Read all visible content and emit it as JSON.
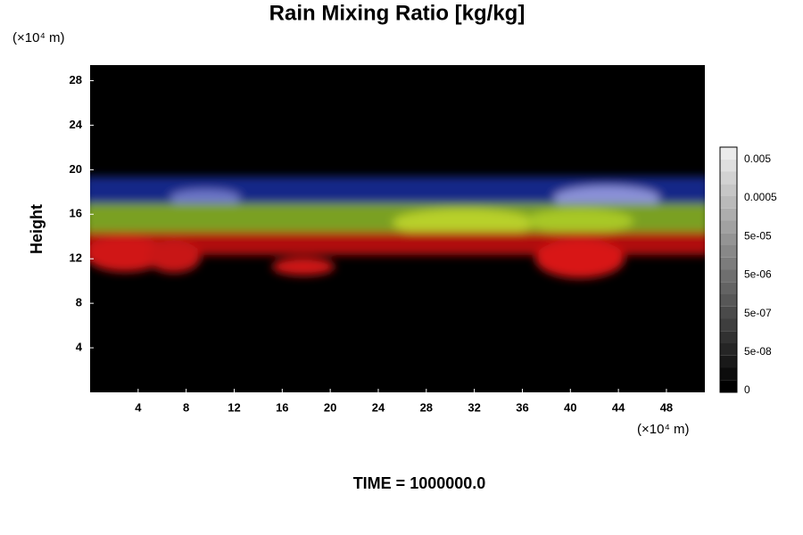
{
  "chart_data": {
    "type": "heatmap",
    "title": "Rain Mixing Ratio [kg/kg]",
    "x_unit": "(×10⁴ m)",
    "y_unit": "(×10⁴ m)",
    "y_label": "Height",
    "xlim": [
      0,
      51.2
    ],
    "xticks": [
      4,
      8,
      12,
      16,
      20,
      24,
      28,
      32,
      36,
      40,
      44,
      48
    ],
    "ylim": [
      0,
      29.4
    ],
    "yticks": [
      4,
      8,
      12,
      16,
      20,
      24,
      28
    ],
    "colorbar_ticks": [
      0,
      {
        "value": 5e-08,
        "label": "5e-08"
      },
      {
        "value": 5e-07,
        "label": "5e-07"
      },
      {
        "value": 5e-06,
        "label": "5e-06"
      },
      {
        "value": 5e-05,
        "label": "5e-05"
      },
      0.0005,
      0.005
    ],
    "footer": "TIME = 1000000.0"
  }
}
